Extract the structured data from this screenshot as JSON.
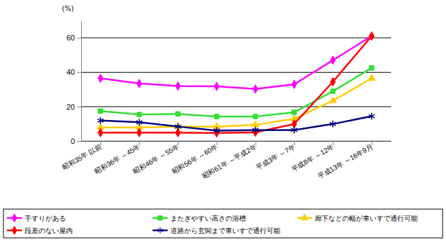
{
  "chart_data": {
    "type": "line",
    "y_label": "(%)",
    "categories": [
      "昭和35年 以前",
      "昭和36年 ～45年",
      "昭和46年 ～55年",
      "昭和56年 ～60年",
      "昭和61年 ～平成2年",
      "平成3年 ～7年",
      "平成8年 ～12年",
      "平成13年 ～16年9月"
    ],
    "series": [
      {
        "name": "手すりがある",
        "color": "#ff00ff",
        "marker": "diamond",
        "values": [
          36.5,
          33.5,
          32,
          31.8,
          30.3,
          33,
          47,
          61
        ]
      },
      {
        "name": "またぎやすい高さの浴槽",
        "color": "#33dd33",
        "marker": "square",
        "values": [
          17.5,
          15.5,
          15.8,
          14.3,
          14.3,
          16.8,
          29,
          42.5
        ]
      },
      {
        "name": "廊下などの幅が車いすで通行可能",
        "color": "#ffcc00",
        "marker": "triangle",
        "values": [
          8,
          8,
          8.5,
          8.5,
          9.5,
          13,
          23.5,
          36.5
        ]
      },
      {
        "name": "段差のない屋内",
        "color": "#ff0000",
        "marker": "diamond",
        "values": [
          5,
          5,
          5,
          4.8,
          5.2,
          10,
          34.5,
          61
        ]
      },
      {
        "name": "道路から玄関まで車いすで通行可能",
        "color": "#000080",
        "marker": "asterisk",
        "values": [
          12,
          11,
          8.5,
          6.2,
          6.5,
          6.5,
          10,
          14.5
        ]
      }
    ],
    "ylim": [
      0,
      70
    ],
    "yticks": [
      0,
      20,
      40,
      60
    ],
    "grid": true,
    "legend": "bottom"
  }
}
